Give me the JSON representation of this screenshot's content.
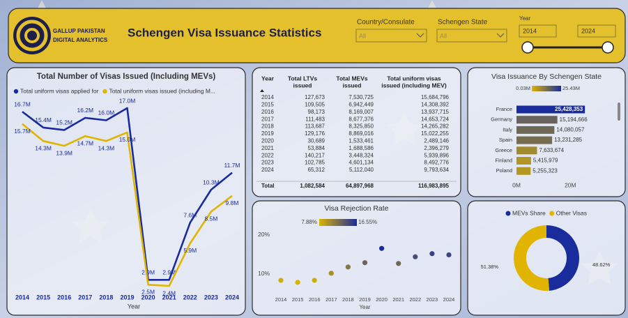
{
  "header": {
    "logo_line1": "GALLUP PAKISTAN",
    "logo_line2": "DIGITAL ANALYTICS",
    "title": "Schengen Visa Issuance Statistics"
  },
  "filters": {
    "country_label": "Country/Consulate",
    "country_value": "All",
    "state_label": "Schengen State",
    "state_value": "All",
    "year_label": "Year",
    "year_from": "2014",
    "year_to": "2024"
  },
  "table": {
    "columns": [
      [
        "Year"
      ],
      [
        "Total LTVs",
        "issued"
      ],
      [
        "Total MEVs",
        "issued"
      ],
      [
        "Total uniform visas",
        "issued (including MEV)"
      ]
    ],
    "rows": [
      [
        "2014",
        "127,673",
        "7,530,725",
        "15,684,796"
      ],
      [
        "2015",
        "109,505",
        "6,942,449",
        "14,308,392"
      ],
      [
        "2016",
        "98,173",
        "8,169,007",
        "13,937,715"
      ],
      [
        "2017",
        "111,483",
        "8,677,376",
        "14,653,724"
      ],
      [
        "2018",
        "113,687",
        "8,325,850",
        "14,265,282"
      ],
      [
        "2019",
        "129,176",
        "8,869,016",
        "15,022,255"
      ],
      [
        "2020",
        "30,689",
        "1,533,461",
        "2,489,146"
      ],
      [
        "2021",
        "53,884",
        "1,688,586",
        "2,396,279"
      ],
      [
        "2022",
        "140,217",
        "3,448,324",
        "5,939,896"
      ],
      [
        "2023",
        "102,785",
        "4,601,134",
        "8,492,776"
      ],
      [
        "2024",
        "65,312",
        "5,112,040",
        "9,793,634"
      ]
    ],
    "total": [
      "Total",
      "1,082,584",
      "64,897,968",
      "116,983,895"
    ]
  },
  "chart_data": [
    {
      "type": "line",
      "title": "Total Number of Visas Issued (Including MEVs)",
      "x_label": "Year",
      "x": [
        2014,
        2015,
        2016,
        2017,
        2018,
        2019,
        2020,
        2021,
        2022,
        2023,
        2024
      ],
      "series": [
        {
          "name": "Total uniform visas applied for",
          "color": "#1a2b9c",
          "values": [
            16.7,
            15.4,
            15.2,
            16.2,
            16.0,
            17.0,
            2.9,
            2.9,
            7.6,
            10.3,
            11.7
          ],
          "value_labels": [
            "16.7M",
            "15.4M",
            "15.2M",
            "16.2M",
            "16.0M",
            "17.0M",
            "2.9M",
            "2.9M",
            "7.6M",
            "10.3M",
            "11.7M"
          ]
        },
        {
          "name": "Total uniform visas issued (including M...",
          "color": "#e0b400",
          "values": [
            15.7,
            14.3,
            13.9,
            14.7,
            14.3,
            15.0,
            2.5,
            2.4,
            5.9,
            8.5,
            9.8
          ],
          "value_labels": [
            "15.7M",
            "14.3M",
            "13.9M",
            "14.7M",
            "14.3M",
            "15.0M",
            "2.5M",
            "2.4M",
            "5.9M",
            "8.5M",
            "9.8M"
          ]
        }
      ]
    },
    {
      "type": "hbar",
      "title": "Visa Issuance By Schengen State",
      "categories": [
        "France",
        "Germany",
        "Italy",
        "Spain",
        "Greece",
        "Finland",
        "Poland"
      ],
      "values": [
        25428353,
        15194666,
        14080057,
        13231285,
        7633674,
        5415979,
        5255323
      ],
      "value_labels": [
        "25,428,353",
        "15,194,666",
        "14,080,057",
        "13,231,285",
        "7,633,674",
        "5,415,979",
        "5,255,323"
      ],
      "legend_range": [
        {
          "value": 30000,
          "label": "0.03M"
        },
        {
          "value": 25430000,
          "label": "25.43M"
        }
      ],
      "color_low": "#d9b400",
      "color_high": "#1a2b9c",
      "xlim": [
        0,
        36000000
      ],
      "xticks": [
        {
          "value": 0,
          "label": "0M"
        },
        {
          "value": 20000000,
          "label": "20M"
        }
      ]
    },
    {
      "type": "scatter",
      "title": "Visa Rejection Rate",
      "x_label": "Year",
      "x": [
        2014,
        2015,
        2016,
        2017,
        2018,
        2019,
        2020,
        2021,
        2022,
        2023,
        2024
      ],
      "values": [
        8.4,
        7.88,
        8.4,
        10.2,
        11.8,
        12.9,
        16.55,
        12.7,
        14.4,
        15.2,
        14.9
      ],
      "legend_range": [
        {
          "value": 7.88,
          "label": "7.88%"
        },
        {
          "value": 16.55,
          "label": "16.55%"
        }
      ],
      "color_low": "#d9b400",
      "color_high": "#1a2b9c",
      "ylim": [
        5,
        23
      ],
      "yticks": [
        {
          "value": 10,
          "label": "10%"
        },
        {
          "value": 20,
          "label": "20%"
        }
      ]
    },
    {
      "type": "pie",
      "categories": [
        "MEVs Share",
        "Other Visas"
      ],
      "values": [
        48.62,
        51.38
      ],
      "value_labels": [
        "48.62%",
        "51.38%"
      ],
      "colors": [
        "#1a2b9c",
        "#e0b400"
      ]
    }
  ]
}
